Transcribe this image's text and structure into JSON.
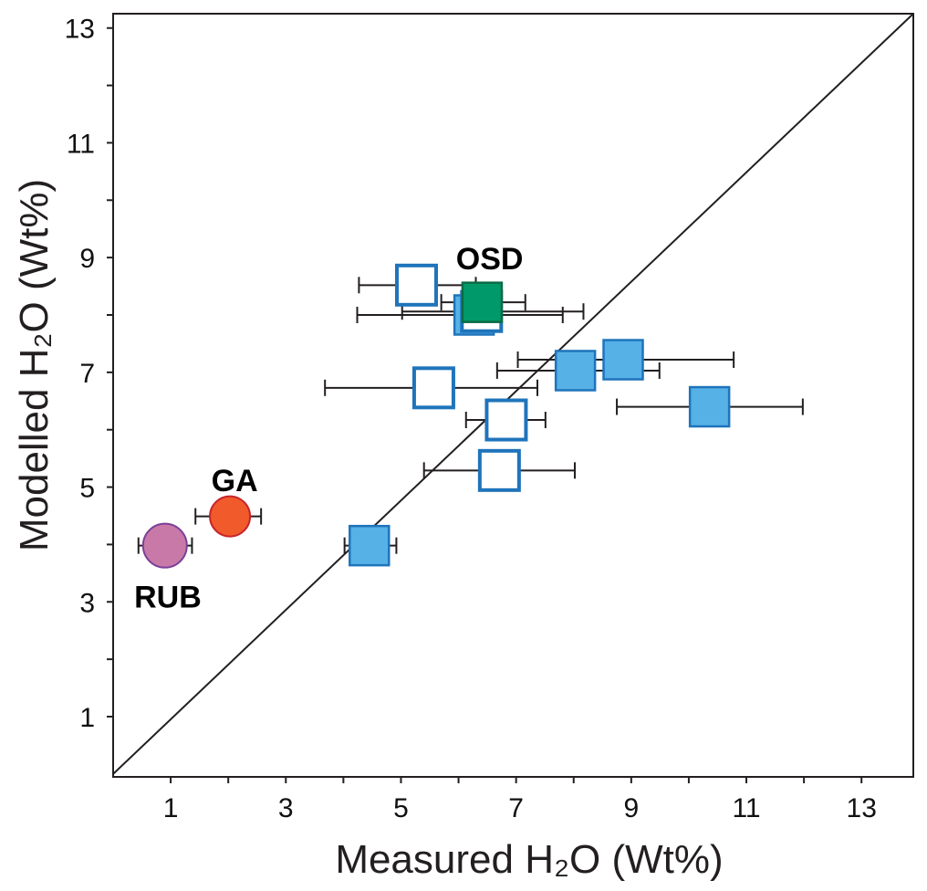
{
  "chart_data": {
    "type": "scatter",
    "title": "",
    "xlabel": "Measured H₂O (Wt%)",
    "ylabel": "Modelled H₂O (Wt%)",
    "xlim": [
      0,
      13.9
    ],
    "ylim": [
      -0.05,
      13.25
    ],
    "x_ticks": [
      1,
      3,
      5,
      7,
      9,
      11,
      13
    ],
    "y_ticks": [
      1,
      3,
      5,
      7,
      9,
      11,
      13
    ],
    "x_minor_ticks": [
      2,
      4,
      6,
      8,
      10,
      12
    ],
    "y_minor_ticks": [
      2,
      4,
      6,
      8,
      10,
      12
    ],
    "grid": false,
    "reference_line": {
      "name": "1:1 line",
      "from": [
        0,
        0
      ],
      "to": [
        13.9,
        13.25
      ]
    },
    "colors": {
      "blue_fill": "#56b1e6",
      "blue_stroke": "#1f74bb",
      "green_fill": "#009a6a",
      "green_stroke": "#0b6b45",
      "ga_fill": "#f15a2b",
      "ga_stroke": "#c8242b",
      "rub_fill": "#c879a8",
      "rub_stroke": "#7b3f98",
      "errorbar": "#231f20"
    },
    "series": [
      {
        "name": "Open squares",
        "marker": "square-open",
        "points": [
          {
            "x": 5.27,
            "y": 8.52,
            "xerr": [
              4.27,
              6.3
            ]
          },
          {
            "x": 6.4,
            "y": 8.06,
            "xerr": [
              5.02,
              8.17
            ]
          },
          {
            "x": 5.57,
            "y": 6.73,
            "xerr": [
              3.68,
              7.37
            ]
          },
          {
            "x": 6.83,
            "y": 6.17,
            "xerr": [
              6.13,
              7.51
            ]
          },
          {
            "x": 6.71,
            "y": 5.29,
            "xerr": [
              5.4,
              8.02
            ]
          }
        ]
      },
      {
        "name": "Filled squares",
        "marker": "square-filled",
        "points": [
          {
            "x": 6.27,
            "y": 8.0,
            "xerr": [
              4.24,
              7.81
            ]
          },
          {
            "x": 8.03,
            "y": 7.03,
            "xerr": [
              6.67,
              9.49
            ]
          },
          {
            "x": 8.86,
            "y": 7.22,
            "xerr": [
              7.03,
              10.78
            ]
          },
          {
            "x": 10.36,
            "y": 6.4,
            "xerr": [
              8.75,
              11.98
            ]
          },
          {
            "x": 4.45,
            "y": 3.98,
            "xerr": [
              4.02,
              4.92
            ]
          }
        ]
      },
      {
        "name": "OSD",
        "marker": "square-green",
        "points": [
          {
            "x": 6.41,
            "y": 8.22,
            "xerr": [
              5.7,
              7.16
            ]
          }
        ]
      },
      {
        "name": "GA",
        "marker": "circle-orange",
        "points": [
          {
            "x": 2.03,
            "y": 4.49,
            "xerr": [
              1.43,
              2.57
            ]
          }
        ]
      },
      {
        "name": "RUB",
        "marker": "circle-pink",
        "points": [
          {
            "x": 0.9,
            "y": 3.98,
            "xerr": [
              0.44,
              1.37
            ]
          }
        ]
      }
    ],
    "annotations": [
      {
        "text": "OSD",
        "x": 6.54,
        "y": 8.99
      },
      {
        "text": "GA",
        "x": 2.11,
        "y": 5.12
      },
      {
        "text": "RUB",
        "x": 0.95,
        "y": 3.09
      }
    ]
  }
}
